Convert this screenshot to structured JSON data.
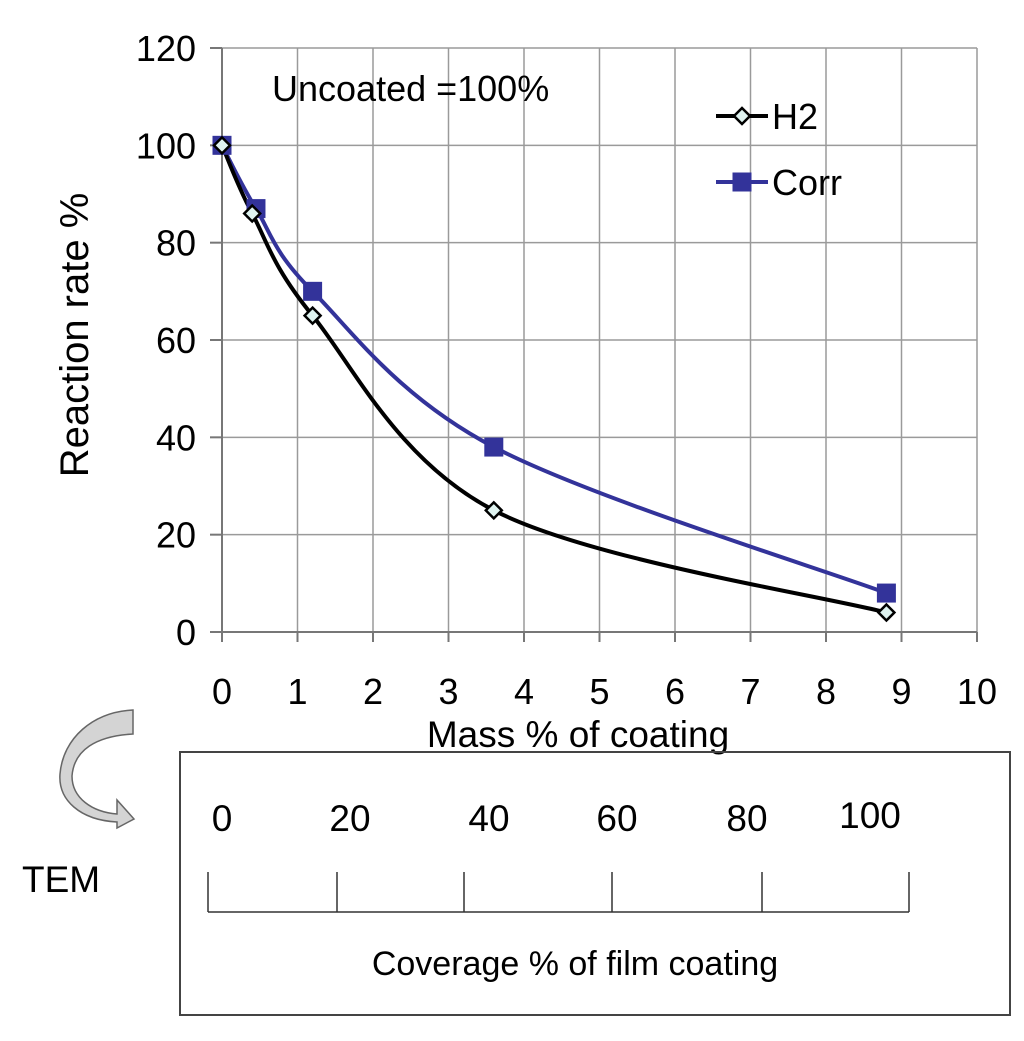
{
  "chart_data": {
    "type": "line",
    "title": "",
    "annotation": "Uncoated =100%",
    "xlabel": "Mass % of coating",
    "ylabel": "Reaction rate %",
    "xlim": [
      0,
      10
    ],
    "ylim": [
      0,
      120
    ],
    "xticks": [
      "0",
      "1",
      "2",
      "3",
      "4",
      "5",
      "6",
      "7",
      "8",
      "9",
      "10"
    ],
    "yticks": [
      "0",
      "20",
      "40",
      "60",
      "80",
      "100",
      "120"
    ],
    "grid": true,
    "legend_position": "top-right",
    "series": [
      {
        "name": "H2",
        "color": "#000000",
        "marker": "diamond-open",
        "marker_fill": "#dff3f0",
        "x": [
          0,
          0.4,
          1.2,
          3.6,
          8.8
        ],
        "y": [
          100,
          86,
          65,
          25,
          4
        ]
      },
      {
        "name": "Corr",
        "color": "#33339a",
        "marker": "square",
        "marker_fill": "#33339a",
        "x": [
          0,
          0.45,
          1.2,
          3.6,
          8.8
        ],
        "y": [
          100,
          87,
          70,
          38,
          8
        ]
      }
    ]
  },
  "tem_panel": {
    "side_label": "TEM",
    "caption": "Coverage % of film coating",
    "scale_labels": [
      "0",
      "20",
      "40",
      "60",
      "80",
      "100"
    ],
    "arrow_icon": "curved-arrow-icon"
  }
}
